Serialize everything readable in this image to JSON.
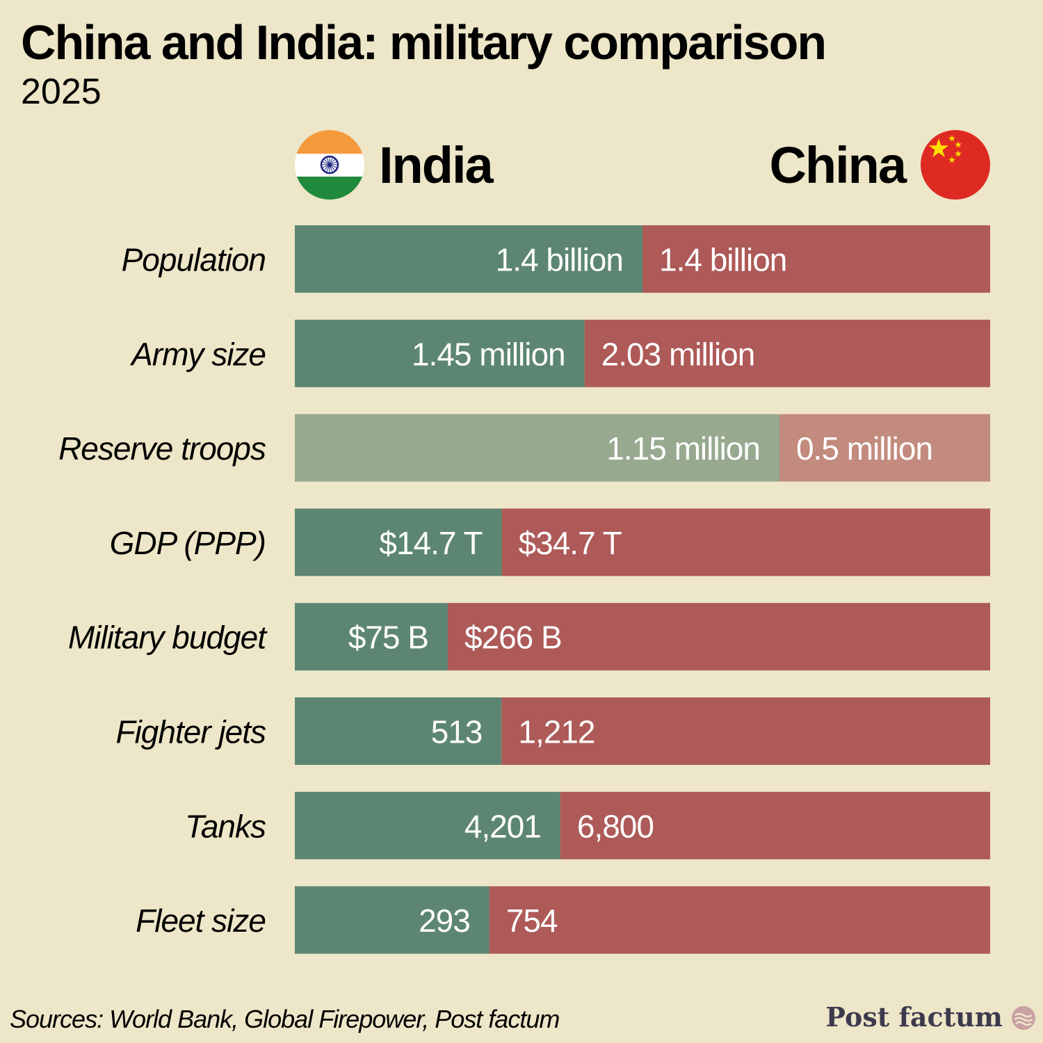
{
  "header": {
    "title": "China and India: military comparison",
    "subtitle": "2025"
  },
  "countries": {
    "left": "India",
    "right": "China"
  },
  "colors": {
    "background": "#ede6c8",
    "india": "#5d8672",
    "china": "#ad5a58",
    "india_light": "#97a98f",
    "china_light": "#c28b7e",
    "label_text": "#ffffff"
  },
  "chart_data": {
    "type": "bar",
    "stacked_share": true,
    "title": "China and India: military comparison",
    "subtitle": "2025",
    "categories": [
      "Population",
      "Army size",
      "Reserve troops",
      "GDP (PPP)",
      "Military budget",
      "Fighter jets",
      "Tanks",
      "Fleet size"
    ],
    "series": [
      {
        "name": "India",
        "values": [
          1.4,
          1.45,
          1.15,
          14.7,
          75,
          513,
          4201,
          293
        ],
        "labels": [
          "1.4 billion",
          "1.45 million",
          "1.15 million",
          "$14.7 T",
          "$75 B",
          "513",
          "4,201",
          "293"
        ]
      },
      {
        "name": "China",
        "values": [
          1.4,
          2.03,
          0.5,
          34.7,
          266,
          1212,
          6800,
          754
        ],
        "labels": [
          "1.4 billion",
          "2.03 million",
          "0.5 million",
          "$34.7 T",
          "$266 B",
          "1,212",
          "6,800",
          "754"
        ]
      }
    ],
    "highlight_light_rows": [
      2
    ]
  },
  "footer": {
    "sources": "Sources: World Bank, Global Firepower, Post factum",
    "brand": "Post factum"
  }
}
